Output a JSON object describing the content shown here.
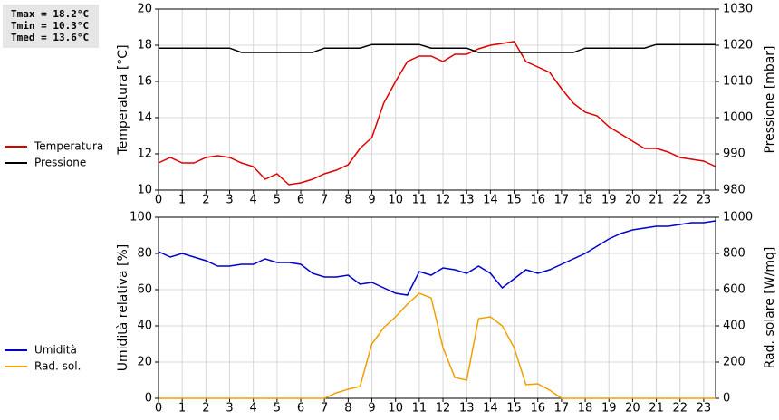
{
  "chart_data": [
    {
      "type": "line",
      "annotations": [
        "Tmax = 18.2°C",
        "Tmin = 10.3°C",
        "Tmed = 13.6°C"
      ],
      "ylabel": "Temperatura [°C]",
      "y2label": "Pressione [mbar]",
      "x": [
        0,
        0.5,
        1,
        1.5,
        2,
        2.5,
        3,
        3.5,
        4,
        4.5,
        5,
        5.5,
        6,
        6.5,
        7,
        7.5,
        8,
        8.5,
        9,
        9.5,
        10,
        10.5,
        11,
        11.5,
        12,
        12.5,
        13,
        13.5,
        14,
        14.5,
        15,
        15.5,
        16,
        16.5,
        17,
        17.5,
        18,
        18.5,
        19,
        19.5,
        20,
        20.5,
        21,
        21.5,
        22,
        22.5,
        23,
        23.5
      ],
      "xlim": [
        0,
        23.5
      ],
      "xticks": [
        0,
        1,
        2,
        3,
        4,
        5,
        6,
        7,
        8,
        9,
        10,
        11,
        12,
        13,
        14,
        15,
        16,
        17,
        18,
        19,
        20,
        21,
        22,
        23
      ],
      "ylim": [
        10,
        20
      ],
      "yticks": [
        10,
        12,
        14,
        16,
        18,
        20
      ],
      "y2lim": [
        980,
        1030
      ],
      "y2ticks": [
        980,
        990,
        1000,
        1010,
        1020,
        1030
      ],
      "grid": true,
      "series": [
        {
          "name": "Temperatura",
          "color": "#dd0000",
          "values": [
            11.5,
            11.8,
            11.5,
            11.5,
            11.8,
            11.9,
            11.8,
            11.5,
            11.3,
            10.6,
            10.9,
            10.3,
            10.4,
            10.6,
            10.9,
            11.1,
            11.4,
            12.3,
            12.9,
            14.8,
            16.0,
            17.1,
            17.4,
            17.4,
            17.1,
            17.5,
            17.5,
            17.8,
            18.0,
            18.1,
            18.2,
            17.1,
            16.8,
            16.5,
            15.6,
            14.8,
            14.3,
            14.1,
            13.5,
            13.1,
            12.7,
            12.3,
            12.3,
            12.1,
            11.8,
            11.7,
            11.6,
            11.3
          ]
        },
        {
          "name": "Pressione",
          "color": "#000000",
          "axis": "y2",
          "values": [
            1019.2,
            1019.2,
            1019.2,
            1019.2,
            1019.2,
            1019.2,
            1019.2,
            1018,
            1018,
            1018,
            1018,
            1018,
            1018,
            1018,
            1019.2,
            1019.2,
            1019.2,
            1019.2,
            1020.2,
            1020.2,
            1020.2,
            1020.2,
            1020.2,
            1019.2,
            1019.2,
            1019.2,
            1019.2,
            1018,
            1018,
            1018,
            1018,
            1018,
            1018,
            1018,
            1018,
            1018,
            1019.2,
            1019.2,
            1019.2,
            1019.2,
            1019.2,
            1019.2,
            1020.2,
            1020.2,
            1020.2,
            1020.2,
            1020.2,
            1020.2
          ]
        }
      ]
    },
    {
      "type": "line",
      "ylabel": "Umidità relativa [%]",
      "y2label": "Rad. solare [W/mq]",
      "x": [
        0,
        0.5,
        1,
        1.5,
        2,
        2.5,
        3,
        3.5,
        4,
        4.5,
        5,
        5.5,
        6,
        6.5,
        7,
        7.5,
        8,
        8.5,
        9,
        9.5,
        10,
        10.5,
        11,
        11.5,
        12,
        12.5,
        13,
        13.5,
        14,
        14.5,
        15,
        15.5,
        16,
        16.5,
        17,
        17.5,
        18,
        18.5,
        19,
        19.5,
        20,
        20.5,
        21,
        21.5,
        22,
        22.5,
        23,
        23.5
      ],
      "xlim": [
        0,
        23.5
      ],
      "xticks": [
        0,
        1,
        2,
        3,
        4,
        5,
        6,
        7,
        8,
        9,
        10,
        11,
        12,
        13,
        14,
        15,
        16,
        17,
        18,
        19,
        20,
        21,
        22,
        23
      ],
      "ylim": [
        0,
        100
      ],
      "yticks": [
        0,
        20,
        40,
        60,
        80,
        100
      ],
      "y2lim": [
        0,
        1000
      ],
      "y2ticks": [
        0,
        200,
        400,
        600,
        800,
        1000
      ],
      "grid": true,
      "series": [
        {
          "name": "Umidità",
          "color": "#0000cc",
          "values": [
            81,
            78,
            80,
            78,
            76,
            73,
            73,
            74,
            74,
            77,
            75,
            75,
            74,
            69,
            67,
            67,
            68,
            63,
            64,
            61,
            58,
            57,
            70,
            68,
            72,
            71,
            69,
            73,
            69,
            61,
            66,
            71,
            69,
            71,
            74,
            77,
            80,
            84,
            88,
            91,
            93,
            94,
            95,
            95,
            96,
            97,
            97,
            98
          ]
        },
        {
          "name": "Rad. sol.",
          "color": "#f0a000",
          "axis": "y2",
          "values": [
            0,
            0,
            0,
            0,
            0,
            0,
            0,
            0,
            0,
            0,
            0,
            0,
            0,
            0,
            0,
            30,
            50,
            65,
            300,
            390,
            450,
            520,
            580,
            555,
            280,
            115,
            100,
            440,
            450,
            400,
            280,
            75,
            80,
            45,
            0,
            0,
            0,
            0,
            0,
            0,
            0,
            0,
            0,
            0,
            0,
            0,
            0,
            0
          ]
        }
      ]
    }
  ]
}
